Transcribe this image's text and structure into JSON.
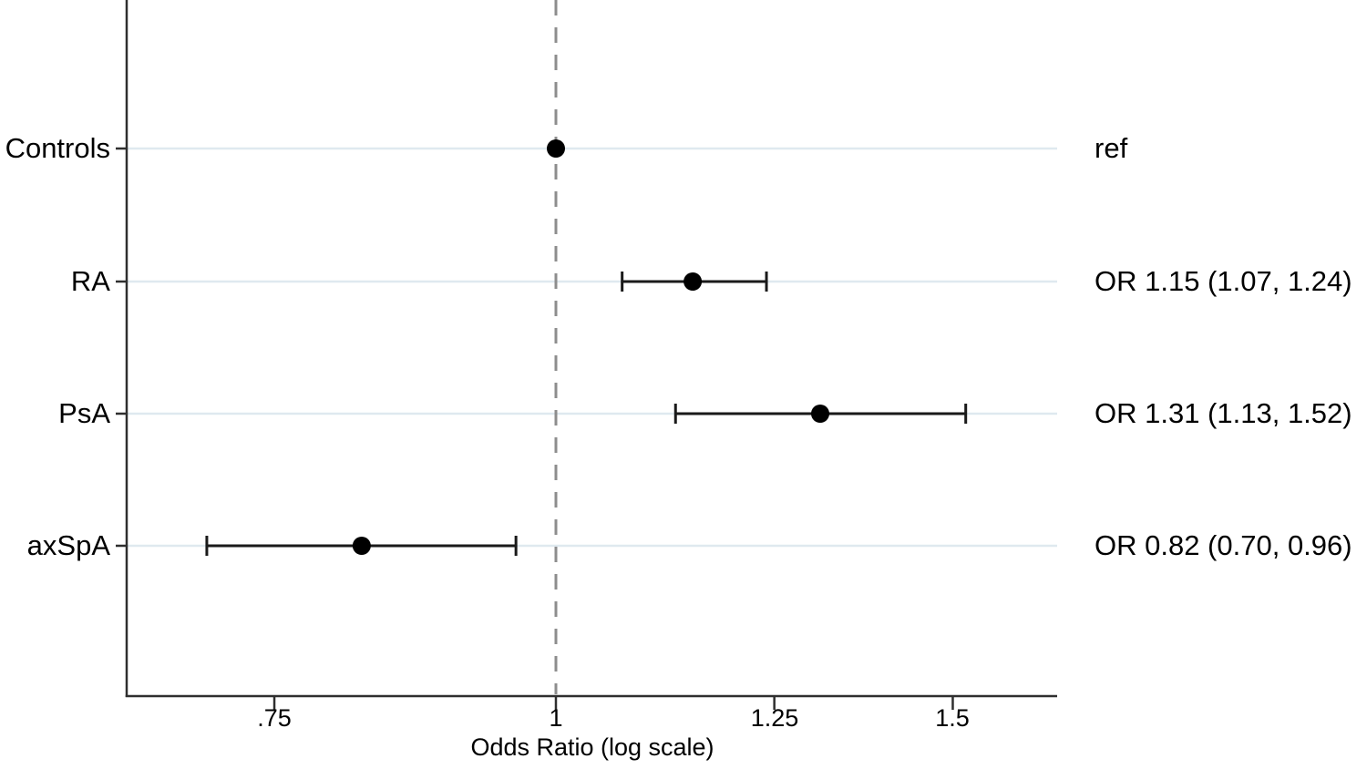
{
  "chart_data": {
    "type": "scatter",
    "subtype": "forest-plot",
    "title": "",
    "xlabel": "Odds Ratio (log scale)",
    "ylabel": "",
    "x_scale": "log",
    "xlim": [
      0.645,
      1.67
    ],
    "reference_line_x": 1,
    "grid": "horizontal-light",
    "legend_position": "none",
    "rows": [
      {
        "label": "Controls",
        "or": 1.0,
        "ci_low": null,
        "ci_high": null,
        "annotation": "ref"
      },
      {
        "label": "RA",
        "or": 1.15,
        "ci_low": 1.07,
        "ci_high": 1.24,
        "annotation": "OR 1.15 (1.07, 1.24)"
      },
      {
        "label": "PsA",
        "or": 1.31,
        "ci_low": 1.13,
        "ci_high": 1.52,
        "annotation": "OR 1.31 (1.13, 1.52)"
      },
      {
        "label": "axSpA",
        "or": 0.82,
        "ci_low": 0.7,
        "ci_high": 0.96,
        "annotation": "OR 0.82 (0.70, 0.96)"
      }
    ],
    "x_ticks": [
      {
        "value": 0.75,
        "label": ".75"
      },
      {
        "value": 1,
        "label": "1"
      },
      {
        "value": 1.25,
        "label": "1.25"
      },
      {
        "value": 1.5,
        "label": "1.5"
      }
    ],
    "colors": {
      "marker": "#000000",
      "error_bar": "#1a1a1a",
      "grid": "#dfe9ef",
      "reference_line": "#8d8d8d",
      "axis": "#2f2f2f",
      "text": "#000000",
      "background": "#ffffff"
    }
  }
}
